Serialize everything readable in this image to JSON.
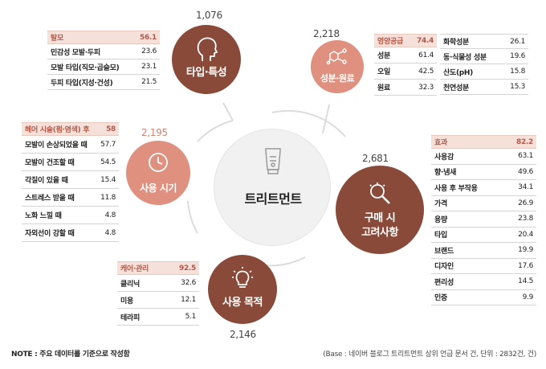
{
  "center": {
    "title": "트리트먼트",
    "icon": "tube-icon"
  },
  "categories": {
    "type": {
      "label": "타입·특성",
      "count": "1,076",
      "icon": "head-profile-icon",
      "head": {
        "label": "탈모",
        "value": "56.1"
      },
      "rows": [
        {
          "label": "민감성 모발·두피",
          "value": "23.6"
        },
        {
          "label": "모발 타입(직모·곱슬모)",
          "value": "23.1"
        },
        {
          "label": "두피 타입(지성·건성)",
          "value": "21.5"
        }
      ]
    },
    "ingredient": {
      "label": "성분·원료",
      "count": "2,218",
      "icon": "molecule-icon",
      "col1": {
        "head": {
          "label": "영양공급",
          "value": "74.4"
        },
        "rows": [
          {
            "label": "성분",
            "value": "61.4"
          },
          {
            "label": "오일",
            "value": "42.5"
          },
          {
            "label": "원료",
            "value": "32.3"
          }
        ]
      },
      "col2": {
        "rows": [
          {
            "label": "화학성분",
            "value": "26.1"
          },
          {
            "label": "동·식물성 성분",
            "value": "19.6"
          },
          {
            "label": "산도(pH)",
            "value": "15.8"
          },
          {
            "label": "천연성분",
            "value": "15.3"
          }
        ]
      }
    },
    "timing": {
      "label": "사용 시기",
      "count": "2,195",
      "icon": "clock-icon",
      "head": {
        "label": "헤어 시술(펌·염색) 후",
        "value": "58"
      },
      "rows": [
        {
          "label": "모발이 손상되었을 때",
          "value": "57.7"
        },
        {
          "label": "모발이 건조할 때",
          "value": "54.5"
        },
        {
          "label": "각질이 있을 때",
          "value": "15.4"
        },
        {
          "label": "스트레스 받을 때",
          "value": "11.8"
        },
        {
          "label": "노화 느낄 때",
          "value": "4.8"
        },
        {
          "label": "자외선이 강할 때",
          "value": "4.8"
        }
      ]
    },
    "purchase": {
      "label_line1": "구매 시",
      "label_line2": "고려사항",
      "count": "2,681",
      "icon": "magnifier-icon",
      "head": {
        "label": "효과",
        "value": "82.2"
      },
      "rows": [
        {
          "label": "사용감",
          "value": "63.1"
        },
        {
          "label": "향·냄새",
          "value": "49.6"
        },
        {
          "label": "사용 후 부작용",
          "value": "34.1"
        },
        {
          "label": "가격",
          "value": "26.9"
        },
        {
          "label": "용량",
          "value": "23.8"
        },
        {
          "label": "타입",
          "value": "20.4"
        },
        {
          "label": "브랜드",
          "value": "19.9"
        },
        {
          "label": "디자인",
          "value": "17.6"
        },
        {
          "label": "편리성",
          "value": "14.5"
        },
        {
          "label": "인증",
          "value": "9.9"
        }
      ]
    },
    "purpose": {
      "label": "사용 목적",
      "count": "2,146",
      "icon": "lightbulb-icon",
      "head": {
        "label": "케어·관리",
        "value": "92.5"
      },
      "rows": [
        {
          "label": "클리닉",
          "value": "32.6"
        },
        {
          "label": "미용",
          "value": "12.1"
        },
        {
          "label": "테라피",
          "value": "5.1"
        }
      ]
    }
  },
  "footer": {
    "note": "NOTE : 주요 데이터를 기준으로 작성함",
    "base": "(Base : 네이버 블로그 트리트먼트 상위 언급 문서 건, 단위 : 2832건, 건)"
  },
  "colors": {
    "dark": "#8a4a3a",
    "light": "#e0907e",
    "table_head_bg": "#f6e0da",
    "table_head_text": "#b35a48"
  }
}
